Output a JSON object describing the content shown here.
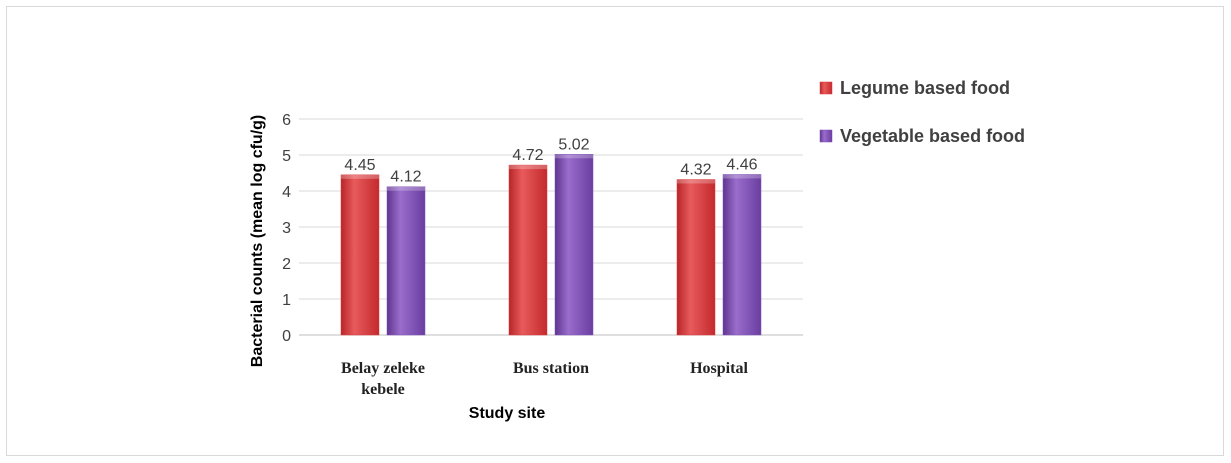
{
  "chart_data": {
    "type": "bar",
    "title": "",
    "xlabel": "Study site",
    "ylabel": "Bacterial counts (mean log cfu/g)",
    "categories": [
      [
        "Belay zeleke",
        "kebele"
      ],
      [
        "Bus station"
      ],
      [
        "Hospital"
      ]
    ],
    "series": [
      {
        "name": "Legume based food",
        "values": [
          4.45,
          4.72,
          4.32
        ],
        "labels": [
          "4.45",
          "4.72",
          "4.32"
        ],
        "color": "#d9383a"
      },
      {
        "name": "Vegetable based food",
        "values": [
          4.12,
          5.02,
          4.46
        ],
        "labels": [
          "4.12",
          "5.02",
          "4.46"
        ],
        "color": "#7e4fb3"
      }
    ],
    "ylim": [
      0,
      6
    ],
    "yticks": [
      "0",
      "1",
      "2",
      "3",
      "4",
      "5",
      "6"
    ],
    "grid": true,
    "legend": "right"
  }
}
